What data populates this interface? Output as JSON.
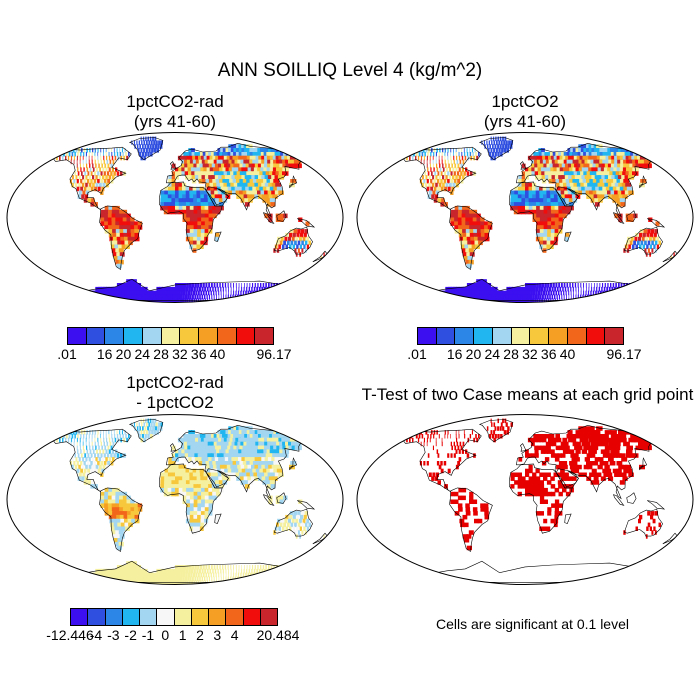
{
  "title": "ANN SOILLIQ Level 4 (kg/m^2)",
  "panels": [
    {
      "id": "p1",
      "title_line1": "1pctCO2-rad",
      "title_line2": "(yrs 41-60)",
      "kind": "abs"
    },
    {
      "id": "p2",
      "title_line1": "1pctCO2",
      "title_line2": "(yrs 41-60)",
      "kind": "abs"
    },
    {
      "id": "p3",
      "title_line1": "1pctCO2-rad",
      "title_line2": "- 1pctCO2",
      "kind": "diff"
    },
    {
      "id": "p4",
      "title_line1": "T-Test of two Case means at each grid point",
      "title_line2": "",
      "kind": "ttest"
    }
  ],
  "colorbar_abs": {
    "colors": [
      "#3b0ff0",
      "#2f4fe0",
      "#2b86e8",
      "#21b6f0",
      "#a3d6f0",
      "#f5f0a0",
      "#f8c83c",
      "#f5a025",
      "#f2661c",
      "#f20d0d",
      "#c8262c"
    ],
    "labels": [
      ".01",
      "16",
      "20",
      "24",
      "28",
      "32",
      "36",
      "40",
      "96.17"
    ]
  },
  "colorbar_diff": {
    "colors": [
      "#3b0ff0",
      "#2f4fe0",
      "#2b86e8",
      "#21b6f0",
      "#a3d6f0",
      "#f7f7f7",
      "#f5f0a0",
      "#f8c83c",
      "#f5a025",
      "#f2661c",
      "#f20d0d",
      "#c8262c"
    ],
    "labels": [
      "-12.446",
      "-4",
      "-3",
      "-2",
      "-1",
      "0",
      "1",
      "2",
      "3",
      "4",
      "20.484"
    ]
  },
  "significance_note": "Cells are significant at 0.1 level",
  "significance_color": "#e60000"
}
